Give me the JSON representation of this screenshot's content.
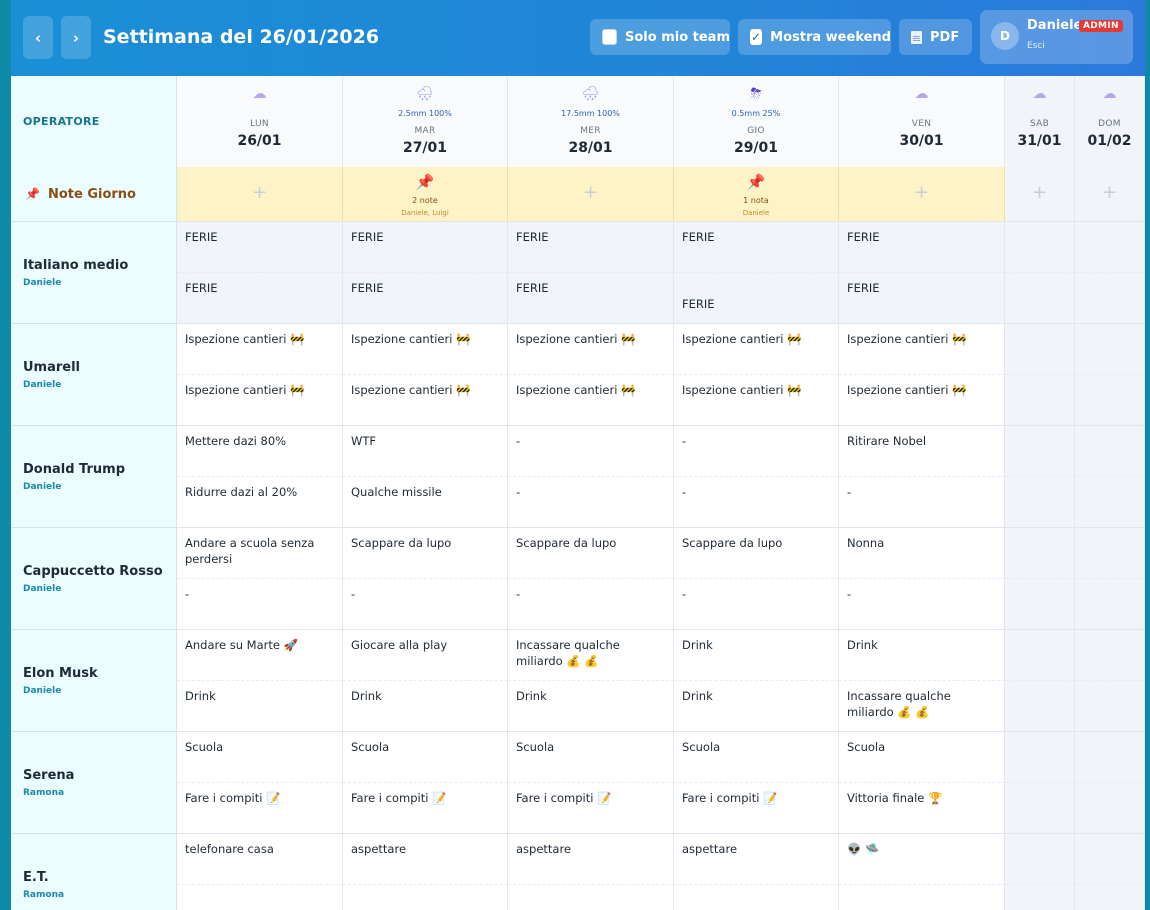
{
  "header": {
    "prev": "‹",
    "next": "›",
    "title": "Settimana del 26/01/2026",
    "toggle_team": "Solo mio team",
    "toggle_weekend": "Mostra weekend",
    "pdf": "PDF",
    "user_initial": "D",
    "user_name": "Daniele",
    "role": "ADMIN",
    "logout": "Esci"
  },
  "grid": {
    "operator_header": "OPERATORE",
    "notes_label": "Note Giorno",
    "days": [
      {
        "weather": "☁",
        "precip": "",
        "name": "LUN",
        "date": "26/01",
        "notes": "",
        "notes_by": ""
      },
      {
        "weather": "🌧",
        "precip": "2.5mm 100%",
        "name": "MAR",
        "date": "27/01",
        "notes": "2 note",
        "notes_by": "Daniele, Luigi"
      },
      {
        "weather": "🌧",
        "precip": "17.5mm 100%",
        "name": "MER",
        "date": "28/01",
        "notes": "",
        "notes_by": ""
      },
      {
        "weather": "⛈",
        "precip": "0.5mm 25%",
        "name": "GIO",
        "date": "29/01",
        "notes": "1 nota",
        "notes_by": "Daniele"
      },
      {
        "weather": "☁",
        "precip": "",
        "name": "VEN",
        "date": "30/01",
        "notes": "",
        "notes_by": ""
      },
      {
        "weather": "☁",
        "precip": "",
        "name": "SAB",
        "date": "31/01",
        "notes": "",
        "notes_by": ""
      },
      {
        "weather": "☁",
        "precip": "",
        "name": "DOM",
        "date": "01/02",
        "notes": "",
        "notes_by": ""
      }
    ],
    "operators": [
      {
        "name": "Italiano medio",
        "owner": "Daniele",
        "am": [
          "FERIE",
          "FERIE",
          "FERIE",
          "FERIE",
          "FERIE",
          "",
          ""
        ],
        "pm": [
          "FERIE",
          "FERIE",
          "FERIE",
          "\nFERIE",
          "FERIE",
          "",
          ""
        ]
      },
      {
        "name": "Umarell",
        "owner": "Daniele",
        "am": [
          "Ispezione cantieri 🚧",
          "Ispezione cantieri 🚧",
          "Ispezione cantieri 🚧",
          "Ispezione cantieri 🚧",
          "Ispezione cantieri 🚧",
          "",
          ""
        ],
        "pm": [
          "Ispezione cantieri 🚧",
          "Ispezione cantieri 🚧",
          "Ispezione cantieri 🚧",
          "Ispezione cantieri 🚧",
          "Ispezione cantieri 🚧",
          "",
          ""
        ]
      },
      {
        "name": "Donald Trump",
        "owner": "Daniele",
        "am": [
          "Mettere dazi 80%",
          "WTF",
          "-",
          "-",
          "Ritirare Nobel",
          "",
          ""
        ],
        "pm": [
          "Ridurre dazi al 20%",
          "Qualche missile",
          "-",
          "-",
          "-",
          "",
          ""
        ]
      },
      {
        "name": "Cappuccetto Rosso",
        "owner": "Daniele",
        "am": [
          "Andare a scuola senza perdersi",
          "Scappare da lupo",
          "Scappare da lupo",
          "Scappare da lupo",
          "Nonna",
          "",
          ""
        ],
        "pm": [
          "-",
          "-",
          "-",
          "-",
          "-",
          "",
          ""
        ]
      },
      {
        "name": "Elon Musk",
        "owner": "Daniele",
        "am": [
          "Andare su Marte 🚀",
          "Giocare alla play",
          "Incassare qualche miliardo 💰 💰",
          "Drink",
          "Drink",
          "",
          ""
        ],
        "pm": [
          "Drink",
          "Drink",
          "Drink",
          "Drink",
          "Incassare qualche miliardo 💰 💰",
          "",
          ""
        ]
      },
      {
        "name": "Serena",
        "owner": "Ramona",
        "am": [
          "Scuola",
          "Scuola",
          "Scuola",
          "Scuola",
          "Scuola",
          "",
          ""
        ],
        "pm": [
          "Fare i compiti 📝",
          "Fare i compiti 📝",
          "Fare i compiti 📝",
          "Fare i compiti 📝",
          "Vittoria finale 🏆",
          "",
          ""
        ]
      },
      {
        "name": "E.T.",
        "owner": "Ramona",
        "am": [
          "telefonare casa",
          "aspettare",
          "aspettare",
          "aspettare",
          "👽 🛸",
          "",
          ""
        ],
        "pm": [
          "",
          "",
          "",
          "",
          "",
          "",
          ""
        ]
      }
    ]
  }
}
